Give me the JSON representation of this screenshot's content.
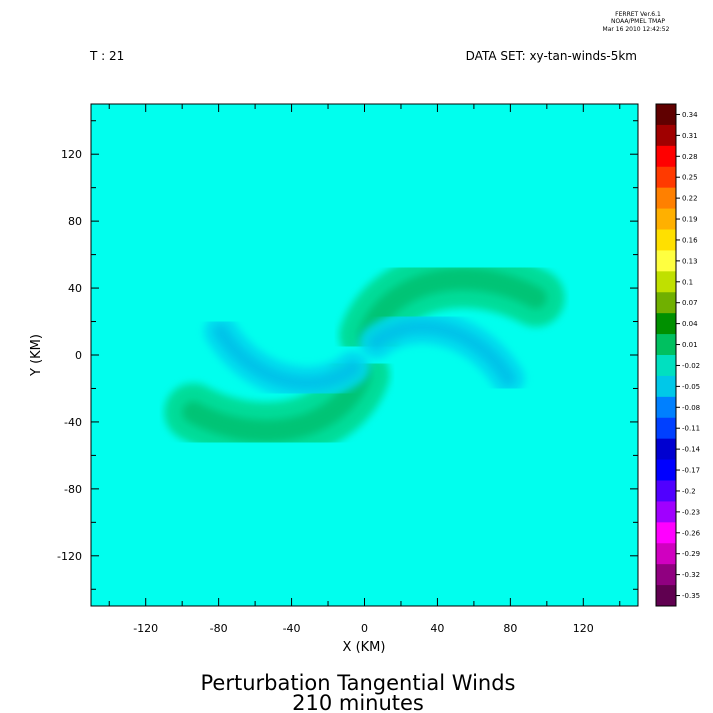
{
  "header": {
    "stamp_line1": "FERRET  Ver.6.1",
    "stamp_line2": "NOAA/PMEL TMAP",
    "stamp_line3": "Mar 16 2010 12:42:52",
    "time_label": "T : 21",
    "dataset_label": "DATA SET: xy-tan-winds-5km"
  },
  "chart_data": {
    "type": "heatmap",
    "title": "Perturbation Tangential Winds",
    "subtitle": "210 minutes",
    "xlabel": "X (KM)",
    "ylabel": "Y (KM)",
    "xlim": [
      -150,
      150
    ],
    "ylim": [
      -150,
      150
    ],
    "x_ticks": [
      -120,
      -80,
      -40,
      0,
      40,
      80,
      120
    ],
    "y_ticks": [
      120,
      80,
      40,
      0,
      -40,
      -80,
      -120
    ],
    "x_tick_labels": [
      "-120",
      "-80",
      "-40",
      "0",
      "40",
      "80",
      "120"
    ],
    "y_tick_labels": [
      "120",
      "80",
      "40",
      "0",
      "-40",
      "-80",
      "-120"
    ],
    "background_value": 0.01,
    "spiral_arms": [
      {
        "band": "positive",
        "value": 0.04,
        "start_angle_deg": 80,
        "end_angle_deg": 20,
        "r_start": 12,
        "r_end": 100
      },
      {
        "band": "positive",
        "value": 0.04,
        "start_angle_deg": 260,
        "end_angle_deg": 200,
        "r_start": 12,
        "r_end": 100
      },
      {
        "band": "negative",
        "value": -0.02,
        "start_angle_deg": 50,
        "end_angle_deg": -10,
        "r_start": 10,
        "r_end": 80
      },
      {
        "band": "negative",
        "value": -0.02,
        "start_angle_deg": 230,
        "end_angle_deg": 170,
        "r_start": 10,
        "r_end": 80
      }
    ],
    "colorbar": {
      "levels": [
        "0.34",
        "0.31",
        "0.28",
        "0.25",
        "0.22",
        "0.19",
        "0.16",
        "0.13",
        "0.1",
        "0.07",
        "0.04",
        "0.01",
        "-0.02",
        "-0.05",
        "-0.08",
        "-0.11",
        "-0.14",
        "-0.17",
        "-0.2",
        "-0.23",
        "-0.26",
        "-0.29",
        "-0.32",
        "-0.35"
      ],
      "colors": [
        "#600000",
        "#a00000",
        "#ff0000",
        "#ff3a00",
        "#ff8000",
        "#ffb000",
        "#ffe000",
        "#ffff40",
        "#c0e000",
        "#70b000",
        "#009000",
        "#00c060",
        "#00e0c0",
        "#00c8e8",
        "#0080ff",
        "#0040ff",
        "#0000d0",
        "#0000ff",
        "#5000ff",
        "#a000ff",
        "#ff00ff",
        "#d000c0",
        "#900080",
        "#600050"
      ]
    },
    "colors": {
      "background_field": "#00ffee",
      "positive_arm": "#00d990",
      "positive_arm_core": "#00c070",
      "negative_arm": "#00d8ee",
      "negative_arm_core": "#00c0e8"
    }
  }
}
